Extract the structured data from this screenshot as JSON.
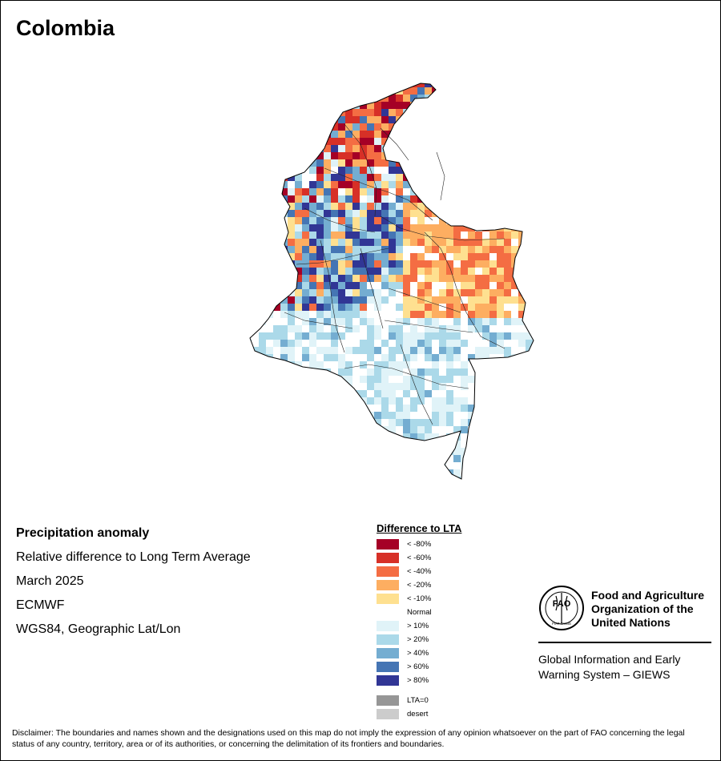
{
  "title": "Colombia",
  "info": {
    "product": "Precipitation anomaly",
    "description": "Relative difference to Long Term Average",
    "period": "March 2025",
    "source": "ECMWF",
    "projection": "WGS84, Geographic Lat/Lon"
  },
  "legend": {
    "title": "Difference to LTA",
    "items": [
      {
        "label": "< -80%",
        "color": "#a50026"
      },
      {
        "label": "< -60%",
        "color": "#d73027"
      },
      {
        "label": "< -40%",
        "color": "#f46d43"
      },
      {
        "label": "< -20%",
        "color": "#fdae61"
      },
      {
        "label": "< -10%",
        "color": "#fee090"
      },
      {
        "label": "Normal",
        "color": "#ffffff"
      },
      {
        "label": "> 10%",
        "color": "#e0f3f8"
      },
      {
        "label": "> 20%",
        "color": "#abd9e9"
      },
      {
        "label": "> 40%",
        "color": "#74add1"
      },
      {
        "label": "> 60%",
        "color": "#4575b4"
      },
      {
        "label": "> 80%",
        "color": "#313695"
      }
    ],
    "extra": [
      {
        "label": "LTA=0",
        "color": "#969696"
      },
      {
        "label": "desert",
        "color": "#cccccc"
      }
    ]
  },
  "fao": {
    "logo_text": "FAO",
    "logo_motto": "FIAT PANIS",
    "name": "Food and Agriculture Organization of the United Nations",
    "giews": "Global Information and Early Warning System – GIEWS"
  },
  "disclaimer": "Disclaimer: The boundaries and names shown and the designations used on this map do not imply the expression of any opinion whatsoever on the part of FAO concerning the legal status of any country, territory, area or of its authorities, or concerning the delimitation of its frontiers and boundaries."
}
